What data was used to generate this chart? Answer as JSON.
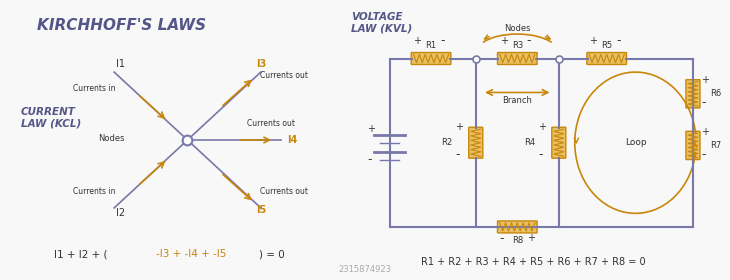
{
  "title": "KIRCHHOFF'S LAWS",
  "bg_color": "#f8f8f8",
  "arrow_color": "#c8860a",
  "line_color": "#7878aa",
  "node_color": "#ffffff",
  "text_dark": "#333333",
  "resistor_fill": "#e8c060",
  "resistor_edge": "#c8860a",
  "kcl_label": "CURRENT\nLAW (KCL)",
  "kvl_label": "VOLTAGE\nLAW (KVL)",
  "kcl_formula": "I1 + I2 + (-I3 + -I4 + -I5) = 0",
  "kvl_formula": "R1 + R2 + R3 + R4 + R5 + R6 + R7 + R8 = 0",
  "watermark": "2315874923"
}
